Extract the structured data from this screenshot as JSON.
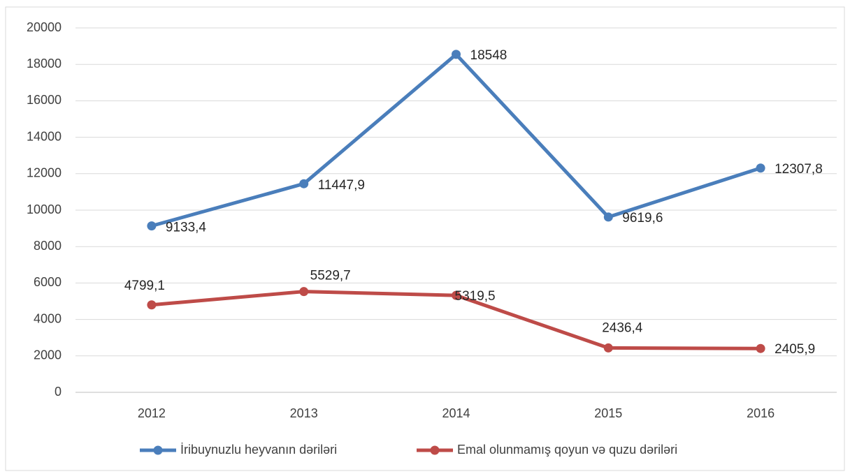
{
  "chart_data": {
    "type": "line",
    "categories": [
      "2012",
      "2013",
      "2014",
      "2015",
      "2016"
    ],
    "series": [
      {
        "name": "İribuynuzlu heyvanın dəriləri",
        "color": "#4a7ebb",
        "values": [
          9133.4,
          11447.9,
          18548,
          9619.6,
          12307.8
        ],
        "value_labels": [
          "9133,4",
          "11447,9",
          "18548",
          "9619,6",
          "12307,8"
        ]
      },
      {
        "name": "Emal olunmamış qoyun və quzu dəriləri",
        "color": "#be4b48",
        "values": [
          4799.1,
          5529.7,
          5319.5,
          2436.4,
          2405.9
        ],
        "value_labels": [
          "4799,1",
          "5529,7",
          "5319,5",
          "2436,4",
          "2405,9"
        ]
      }
    ],
    "ylim": [
      0,
      20000
    ],
    "yticks": [
      0,
      2000,
      4000,
      6000,
      8000,
      10000,
      12000,
      14000,
      16000,
      18000,
      20000
    ],
    "grid": true,
    "legend": "bottom"
  }
}
